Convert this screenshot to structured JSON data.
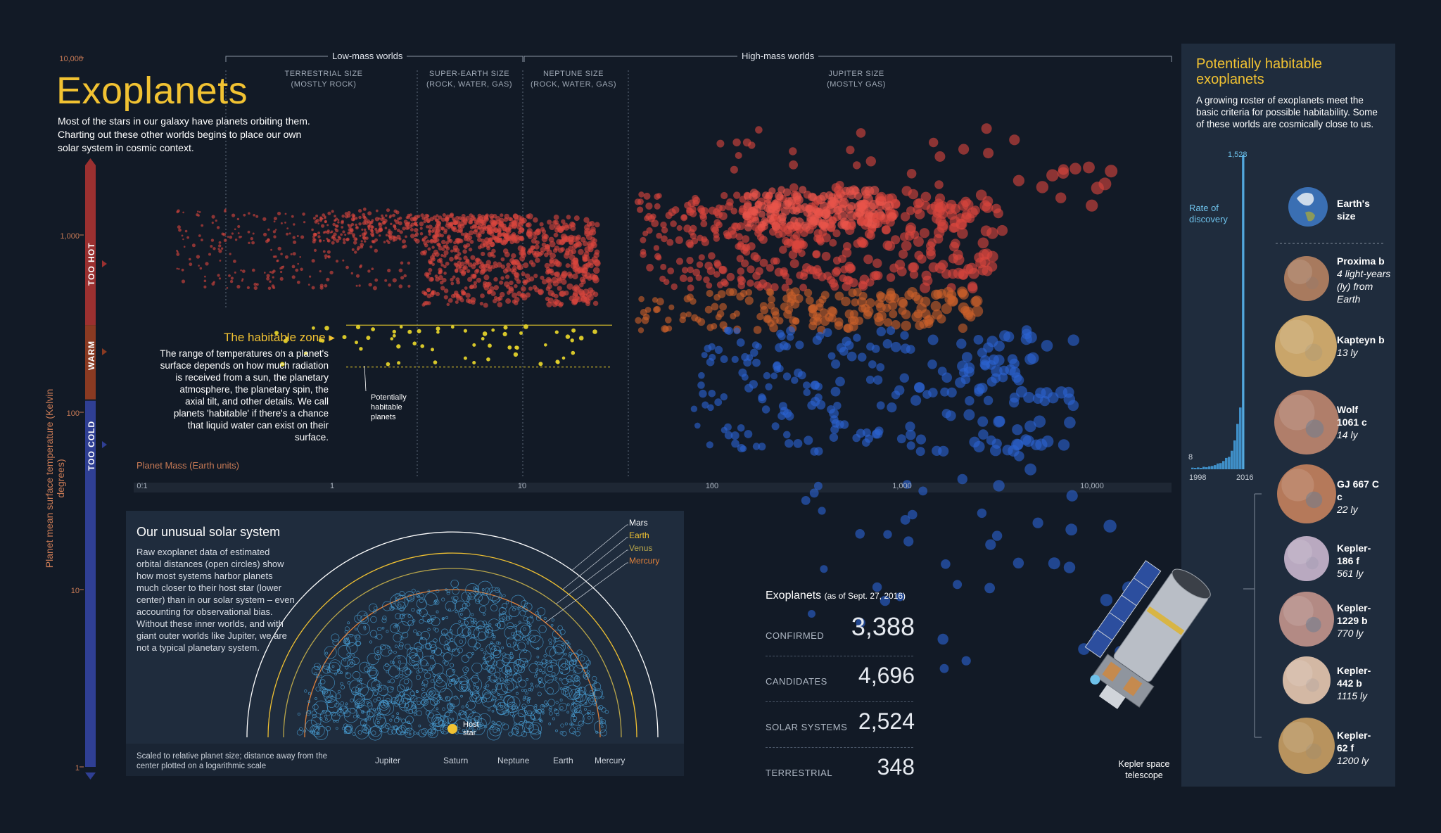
{
  "title": "Exoplanets",
  "intro": "Most of the stars in our galaxy have planets orbiting them. Charting out these other worlds begins to place our own solar system in cosmic context.",
  "chart_data": {
    "type": "scatter",
    "xscale": "log",
    "yscale": "log",
    "xlabel": "Planet Mass (Earth units)",
    "ylabel": "Planet mean surface temperature (Kelvin degrees)",
    "xlim": [
      0.1,
      20000
    ],
    "ylim": [
      1,
      10000
    ],
    "xticks": [
      "0.1",
      "1",
      "10",
      "100",
      "1,000",
      "10,000"
    ],
    "yticks": [
      "10,000",
      "1,000",
      "100",
      "10",
      "1"
    ],
    "temperature_bands": [
      {
        "name": "TOO HOT",
        "color": "#9b3030"
      },
      {
        "name": "WARM",
        "color": "#8a3a22"
      },
      {
        "name": "TOO COLD",
        "color": "#2f3f94"
      }
    ],
    "mass_groups": [
      {
        "name": "Low-mass worlds",
        "categories": [
          {
            "name": "TERRESTRIAL SIZE",
            "note": "(MOSTLY ROCK)"
          },
          {
            "name": "SUPER-EARTH SIZE",
            "note": "(ROCK, WATER, GAS)"
          }
        ]
      },
      {
        "name": "High-mass worlds",
        "categories": [
          {
            "name": "NEPTUNE SIZE",
            "note": "(ROCK, WATER, GAS)"
          },
          {
            "name": "JUPITER SIZE",
            "note": "(MOSTLY GAS)"
          }
        ]
      }
    ],
    "habitable_zone": {
      "label": "The habitable zone",
      "text": "The range of temperatures on a planet's surface depends on how much radiation is received from a sun, the planetary atmosphere, the planetary spin, the axial tilt, and other details. We call planets 'habitable' if there's a chance that liquid water can exist on their surface.",
      "note": "Potentially habitable planets",
      "t_range": [
        180,
        310
      ]
    },
    "clusters": [
      {
        "series": "hot",
        "color": "#d9453d",
        "mass_range": [
          0.8,
          10
        ],
        "temp_range": [
          900,
          1300
        ],
        "count": 350
      },
      {
        "series": "hot",
        "color": "#d9453d",
        "mass_range": [
          3,
          25
        ],
        "temp_range": [
          400,
          1300
        ],
        "count": 600
      },
      {
        "series": "hot",
        "color": "#d9453d",
        "mass_range": [
          0.15,
          3
        ],
        "temp_range": [
          500,
          1400
        ],
        "count": 250
      },
      {
        "series": "hot",
        "color": "#d9453d",
        "mass_range": [
          40,
          3000
        ],
        "temp_range": [
          500,
          1700
        ],
        "count": 420
      },
      {
        "series": "hot",
        "color": "#e8544a",
        "mass_range": [
          150,
          900
        ],
        "temp_range": [
          1100,
          1800
        ],
        "count": 160
      },
      {
        "series": "hot",
        "color": "#d9453d",
        "mass_range": [
          100,
          15000
        ],
        "temp_range": [
          1000,
          4000
        ],
        "count": 60
      },
      {
        "series": "warm",
        "color": "#c9602a",
        "mass_range": [
          40,
          2500
        ],
        "temp_range": [
          290,
          480
        ],
        "count": 180
      },
      {
        "series": "habitable",
        "color": "#e3d12a",
        "mass_range": [
          0.5,
          25
        ],
        "temp_range": [
          185,
          305
        ],
        "count": 60
      },
      {
        "series": "cold",
        "color": "#2c62d0",
        "mass_range": [
          80,
          8000
        ],
        "temp_range": [
          60,
          290
        ],
        "count": 240
      },
      {
        "series": "cold",
        "color": "#2c62d0",
        "mass_range": [
          300,
          20000
        ],
        "temp_range": [
          3,
          60
        ],
        "count": 45
      }
    ]
  },
  "solar": {
    "title": "Our unusual solar system",
    "text": "Raw exoplanet data of estimated orbital distances (open circles) show how most systems harbor planets much closer to their host star (lower center) than in our solar system – even accounting for observational bias. Without these inner worlds, and with giant outer worlds like Jupiter, we are not a typical planetary system.",
    "host": "Host star",
    "orbits": [
      {
        "name": "Mars",
        "color": "#ffffff"
      },
      {
        "name": "Earth",
        "color": "#f1c232"
      },
      {
        "name": "Venus",
        "color": "#b9a64a"
      },
      {
        "name": "Mercury",
        "color": "#e0803a"
      }
    ],
    "footnote": "Scaled to relative planet size; distance away from the center plotted on a logarithmic scale",
    "legend": [
      "Jupiter",
      "Saturn",
      "Neptune",
      "Earth",
      "Mercury"
    ]
  },
  "stats": {
    "title": "Exoplanets",
    "date": "(as of Sept. 27, 2016)",
    "rows": [
      {
        "label": "CONFIRMED",
        "value": "3,388"
      },
      {
        "label": "CANDIDATES",
        "value": "4,696"
      },
      {
        "label": "SOLAR SYSTEMS",
        "value": "2,524"
      },
      {
        "label": "TERRESTRIAL",
        "value": "348"
      }
    ]
  },
  "habitable": {
    "title": "Potentially habitable exoplanets",
    "text": "A growing roster of exoplanets meet the basic criteria for possible habitability. Some of these worlds are cosmically close to us.",
    "rate_label": "Rate of discovery",
    "rate_max": "1,528",
    "rate_min": "8",
    "year_start": "1998",
    "year_end": "2016",
    "discovery_rate": [
      8,
      6,
      9,
      7,
      12,
      10,
      14,
      16,
      20,
      28,
      30,
      40,
      55,
      60,
      90,
      140,
      220,
      300,
      1528
    ],
    "earth": {
      "name": "Earth's size"
    },
    "planets": [
      {
        "name": "Proxima b",
        "dist": "4 light-years (ly) from Earth",
        "color": "#a87a5e"
      },
      {
        "name": "Kapteyn b",
        "dist": "13 ly",
        "color": "#c9a56a"
      },
      {
        "name": "Wolf 1061 c",
        "dist": "14 ly",
        "color": "#b07e6a"
      },
      {
        "name": "GJ 667 C c",
        "dist": "22 ly",
        "color": "#b5795a"
      },
      {
        "name": "Kepler-186 f",
        "dist": "561 ly",
        "color": "#b9a9c0"
      },
      {
        "name": "Kepler-1229 b",
        "dist": "770 ly",
        "color": "#b38a84"
      },
      {
        "name": "Kepler-442 b",
        "dist": "1115 ly",
        "color": "#d3b8a4"
      },
      {
        "name": "Kepler-62 f",
        "dist": "1200 ly",
        "color": "#b8935e"
      }
    ],
    "telescope": "Kepler space telescope"
  }
}
